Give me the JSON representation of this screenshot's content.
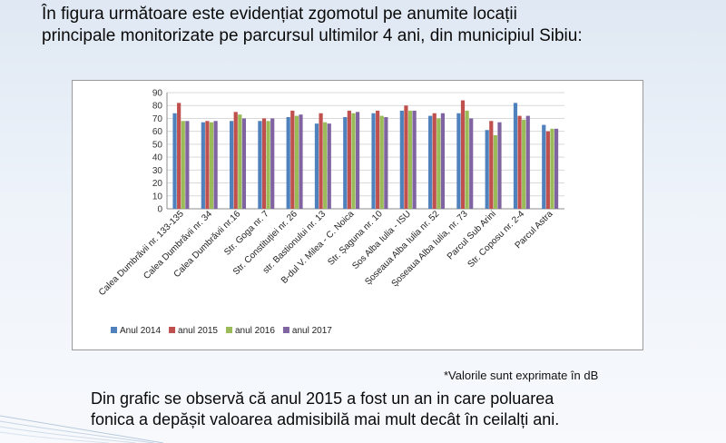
{
  "heading": {
    "line1": "În figura următoare este evidențiat zgomotul pe anumite locații",
    "line2": "principale monitorizate pe parcursul ultimilor 4 ani, din municipiul Sibiu:"
  },
  "chart_data": {
    "type": "bar",
    "title": "",
    "xlabel": "",
    "ylabel": "",
    "ylim": [
      0,
      90
    ],
    "yticks": [
      0,
      10,
      20,
      30,
      40,
      50,
      60,
      70,
      80,
      90
    ],
    "grid": true,
    "legend_position": "bottom-left",
    "categories": [
      "Calea Dumbrăvii nr. 133-135",
      "Calea Dumbrăvii  nr. 34",
      "Calea Dumbrăvii  nr.16",
      "Str. Goga nr. 7",
      "Str. Constituției nr. 26",
      "str. Bastionului nr. 13",
      "B-dul V. Milea - C. Noica",
      "Str. Șaguna nr. 10",
      "Sos Alba Iulia - ISU",
      "Șoseaua Alba Iulia nr. 52",
      "Șoseaua Alba Iulia, nr. 73",
      "Parcul Sub Arini",
      "Str. Coposu nr. 2-4",
      "Parcul Astra"
    ],
    "series": [
      {
        "name": "Anul 2014",
        "color": "#4f81bd",
        "values": [
          74,
          67,
          68,
          68,
          71,
          66,
          71,
          74,
          76,
          72,
          74,
          61,
          82,
          65
        ]
      },
      {
        "name": "anul 2015",
        "color": "#c0504d",
        "values": [
          82,
          68,
          75,
          70,
          76,
          74,
          76,
          76,
          80,
          74,
          84,
          68,
          72,
          60
        ]
      },
      {
        "name": "anul 2016",
        "color": "#9bbb59",
        "values": [
          68,
          67,
          73,
          68,
          72,
          67,
          74,
          72,
          76,
          70,
          76,
          57,
          69,
          62
        ]
      },
      {
        "name": "anul 2017",
        "color": "#8064a2",
        "values": [
          68,
          68,
          70,
          70,
          73,
          66,
          75,
          71,
          76,
          74,
          70,
          67,
          72,
          62
        ]
      }
    ]
  },
  "note": "*Valorile sunt exprimate în dB",
  "conclusion": {
    "line1": "Din grafic se observă că anul 2015 a fost un an in care poluarea",
    "line2": "fonica a depășit valoarea admisibilă mai mult decât în ceilalți ani."
  }
}
